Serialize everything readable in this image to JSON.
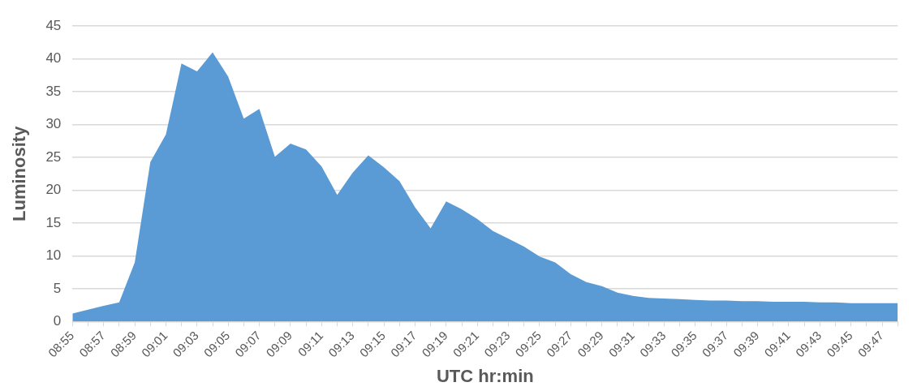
{
  "chart_data": {
    "type": "area",
    "xlabel": "UTC hr:min",
    "ylabel": "Luminosity",
    "categories": [
      "08:55",
      null,
      "08:57",
      null,
      "08:59",
      null,
      "09:01",
      null,
      "09:03",
      null,
      "09:05",
      null,
      "09:07",
      null,
      "09:09",
      null,
      "09:11",
      null,
      "09:13",
      null,
      "09:15",
      null,
      "09:17",
      null,
      "09:19",
      null,
      "09:21",
      null,
      "09:23",
      null,
      "09:25",
      null,
      "09:27",
      null,
      "09:29",
      null,
      "09:31",
      null,
      "09:33",
      null,
      "09:35",
      null,
      "09:37",
      null,
      "09:39",
      null,
      "09:41",
      null,
      "09:43",
      null,
      "09:45",
      null,
      "09:47",
      null
    ],
    "series": [
      {
        "color": "#5b9bd5",
        "values": [
          1.2,
          1.8,
          2.4,
          2.9,
          9,
          24.3,
          28.5,
          39.3,
          38.1,
          41,
          37.3,
          30.9,
          32.4,
          25.1,
          27.1,
          26.2,
          23.6,
          19.3,
          22.7,
          25.3,
          23.5,
          21.4,
          17.4,
          14.2,
          18.3,
          17.1,
          15.6,
          13.8,
          12.6,
          11.4,
          9.9,
          9.0,
          7.2,
          6.0,
          5.4,
          4.4,
          3.9,
          3.6,
          3.5,
          3.4,
          3.3,
          3.2,
          3.2,
          3.1,
          3.1,
          3.0,
          3.0,
          3.0,
          2.9,
          2.9,
          2.8,
          2.8,
          2.8,
          2.8
        ]
      }
    ],
    "ylim": [
      0,
      45
    ],
    "yticks": [
      0,
      5,
      10,
      15,
      20,
      25,
      30,
      35,
      40,
      45
    ],
    "grid": "y",
    "legend": false,
    "marker": "none"
  }
}
